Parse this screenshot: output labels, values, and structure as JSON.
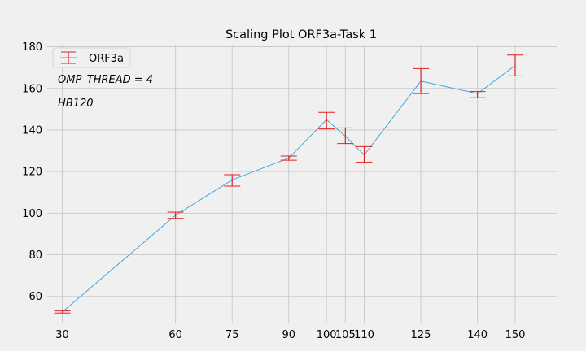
{
  "chart_data": {
    "type": "line",
    "title": "Scaling Plot ORF3a-Task 1",
    "xlabel": "",
    "ylabel": "",
    "x_ticks": [
      30,
      60,
      75,
      90,
      100,
      105,
      110,
      125,
      140,
      150
    ],
    "y_ticks": [
      60,
      80,
      100,
      120,
      140,
      160,
      180
    ],
    "xlim": [
      26,
      161
    ],
    "ylim": [
      47,
      181
    ],
    "grid": true,
    "legend_placement": "top-left",
    "series": [
      {
        "name": "ORF3a",
        "color": "#30a2da",
        "errorbar_color": "#e02020",
        "x": [
          30,
          60,
          75,
          90,
          100,
          105,
          110,
          125,
          140,
          150
        ],
        "y": [
          52.5,
          99,
          116,
          126.5,
          145,
          137,
          128,
          163.5,
          157.5,
          171
        ],
        "err_low": [
          52,
          97.5,
          113,
          125.5,
          140.5,
          133.5,
          124.5,
          157.5,
          155.5,
          166
        ],
        "err_high": [
          53,
          100.5,
          118.5,
          127.5,
          148.5,
          141,
          132,
          169.5,
          158.5,
          176
        ]
      }
    ],
    "annotations": [
      "OMP_THREAD = 4",
      "HB120"
    ]
  }
}
